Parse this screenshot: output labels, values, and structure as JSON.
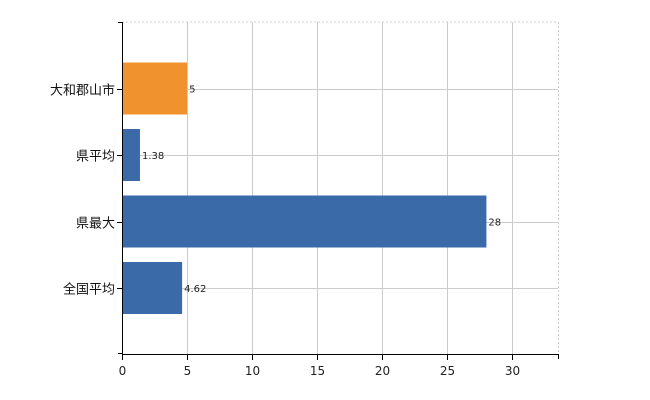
{
  "chart_data": {
    "type": "bar",
    "orientation": "horizontal",
    "categories": [
      "大和郡山市",
      "県平均",
      "県最大",
      "全国平均"
    ],
    "values": [
      5,
      1.38,
      28,
      4.62
    ],
    "value_labels": [
      "5",
      "1.38",
      "28",
      "4.62"
    ],
    "bar_colors": [
      "#f0922e",
      "#3b6aa8",
      "#3b6aa8",
      "#3b6aa8"
    ],
    "xlim": [
      0,
      33.5
    ],
    "xticks": [
      0,
      5,
      10,
      15,
      20,
      25,
      30
    ],
    "xtick_labels": [
      "0",
      "5",
      "10",
      "15",
      "20",
      "25",
      "30"
    ],
    "grid": true,
    "grid_style": "dashed",
    "legend": "none",
    "title": "",
    "xlabel": "",
    "ylabel": ""
  },
  "colors": {
    "highlight": "#f0922e",
    "default_bar": "#3b6aa8",
    "grid": "#cccccc",
    "axis": "#000000"
  }
}
